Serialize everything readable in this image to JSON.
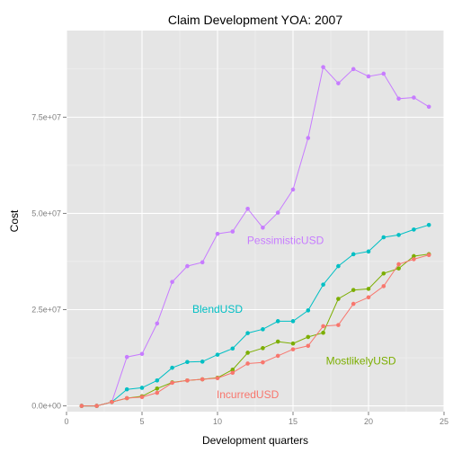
{
  "chart_data": {
    "type": "line",
    "title": "Claim Development  YOA: 2007",
    "xlabel": "Development quarters",
    "ylabel": "Cost",
    "xlim": [
      0,
      25
    ],
    "ylim": [
      -1500000,
      97500000
    ],
    "x_ticks": [
      0,
      5,
      10,
      15,
      20,
      25
    ],
    "x_tick_labels": [
      "0",
      "5",
      "10",
      "15",
      "20",
      "25"
    ],
    "y_ticks": [
      0,
      25000000,
      50000000,
      75000000
    ],
    "y_tick_labels": [
      "0.0e+00",
      "2.5e+07",
      "5.0e+07",
      "7.5e+07"
    ],
    "grid": true,
    "legend": "none (series labelled directly on plot)",
    "x": [
      1,
      2,
      3,
      4,
      5,
      6,
      7,
      8,
      9,
      10,
      11,
      12,
      13,
      14,
      15,
      16,
      17,
      18,
      19,
      20,
      21,
      22,
      23,
      24
    ],
    "series": [
      {
        "name": "PessimisticUSD",
        "color": "#C77CFF",
        "label_at": [
          14.5,
          42000000
        ],
        "values": [
          0,
          0,
          1000000,
          12700000,
          13500000,
          21400000,
          32200000,
          36300000,
          37300000,
          44700000,
          45300000,
          51200000,
          46300000,
          50200000,
          56200000,
          69600000,
          88000000,
          83800000,
          87500000,
          85600000,
          86300000,
          79800000,
          80100000,
          77700000
        ]
      },
      {
        "name": "BlendUSD",
        "color": "#00BFC4",
        "label_at": [
          10,
          24200000
        ],
        "values": [
          0,
          0,
          1000000,
          4300000,
          4700000,
          6600000,
          9900000,
          11400000,
          11500000,
          13300000,
          14900000,
          18900000,
          19900000,
          22000000,
          22000000,
          24800000,
          31500000,
          36300000,
          39400000,
          40100000,
          43800000,
          44400000,
          45800000,
          47000000
        ]
      },
      {
        "name": "MostlikelyUSD",
        "color": "#7CAE00",
        "label_at": [
          19.5,
          10800000
        ],
        "values": [
          0,
          0,
          1000000,
          2000000,
          2500000,
          4500000,
          6100000,
          6600000,
          6900000,
          7300000,
          9400000,
          13800000,
          15000000,
          16700000,
          16200000,
          17900000,
          19000000,
          27800000,
          30100000,
          30400000,
          34400000,
          35700000,
          38900000,
          39400000
        ]
      },
      {
        "name": "IncurredUSD",
        "color": "#F8766D",
        "label_at": [
          12,
          2000000
        ],
        "values": [
          0,
          0,
          1000000,
          2000000,
          2300000,
          3400000,
          6000000,
          6600000,
          6900000,
          7200000,
          8600000,
          11000000,
          11300000,
          13000000,
          14700000,
          15600000,
          20700000,
          21000000,
          26500000,
          28200000,
          31100000,
          36800000,
          38100000,
          39200000
        ]
      }
    ]
  }
}
